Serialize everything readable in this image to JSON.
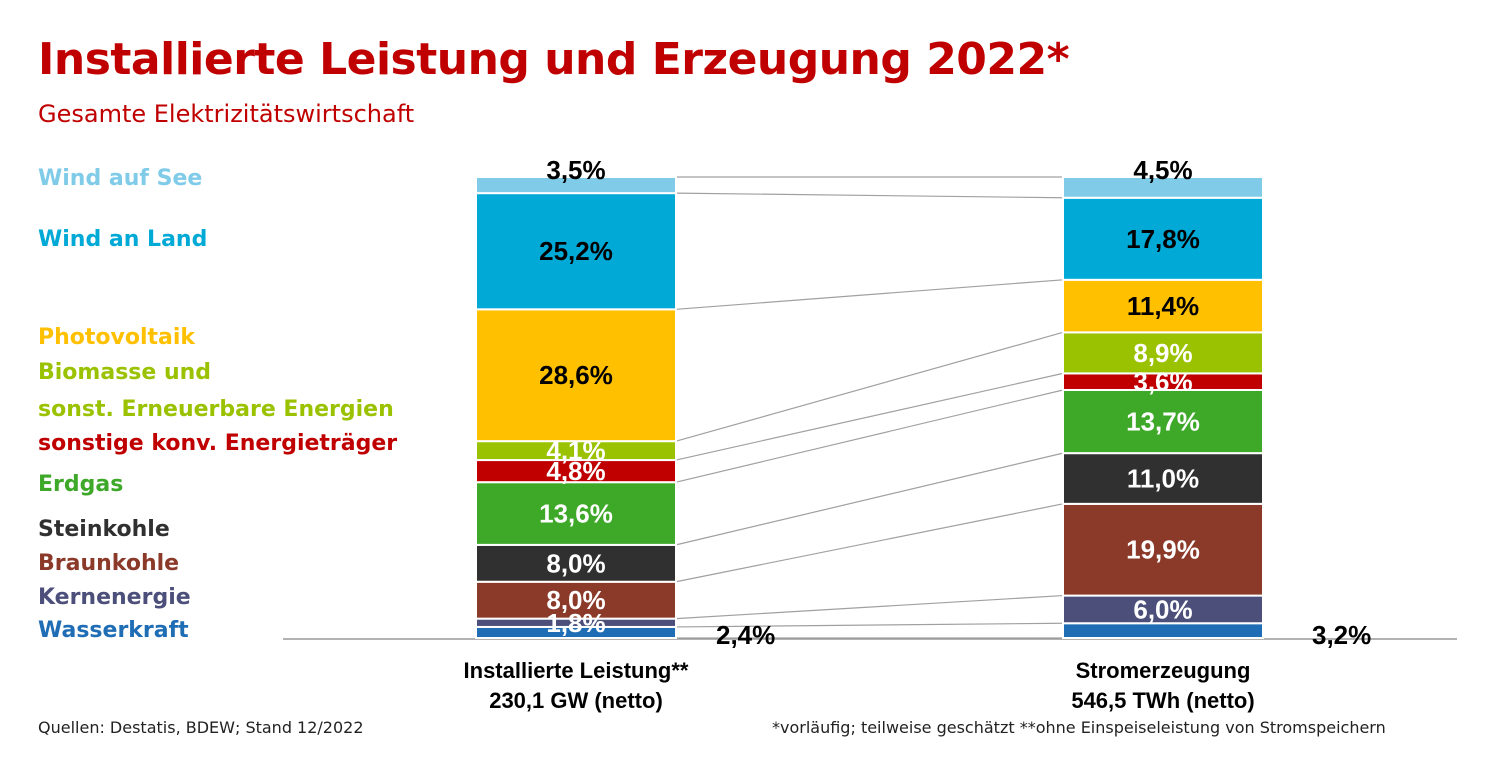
{
  "title": "Installierte Leistung und Erzeugung 2022*",
  "subtitle": "Gesamte Elektrizitätswirtschaft",
  "legend": [
    {
      "label": "Wind auf See",
      "color": "#7fcbe8"
    },
    {
      "label": "Wind an Land",
      "color": "#00a9d6"
    },
    {
      "label": "Photovoltaik",
      "color": "#ffc000"
    },
    {
      "label": "Biomasse und",
      "color": "#9ac200"
    },
    {
      "label": "sonst. Erneuerbare Energien",
      "color": "#9ac200"
    },
    {
      "label": "sonstige konv. Energieträger",
      "color": "#c00000"
    },
    {
      "label": "Erdgas",
      "color": "#3ea829"
    },
    {
      "label": "Steinkohle",
      "color": "#303030"
    },
    {
      "label": "Braunkohle",
      "color": "#8b3a2a"
    },
    {
      "label": "Kernenergie",
      "color": "#4b4f7a"
    },
    {
      "label": "Wasserkraft",
      "color": "#1f6db5"
    }
  ],
  "chart_data": {
    "type": "bar",
    "stacked": true,
    "categories": [
      "Installierte Leistung**\n230,1 GW (netto)",
      "Stromerzeugung\n546,5 TWh (netto)"
    ],
    "category_lines": [
      [
        "Installierte Leistung**",
        "230,1 GW (netto)"
      ],
      [
        "Stromerzeugung",
        "546,5 TWh (netto)"
      ]
    ],
    "series": [
      {
        "name": "Wasserkraft",
        "color": "#1f6db5",
        "values": [
          2.4,
          3.2
        ],
        "labels": [
          "2,4%",
          "3,2%"
        ],
        "label_outside": true
      },
      {
        "name": "Kernenergie",
        "color": "#4b4f7a",
        "values": [
          1.8,
          6.0
        ],
        "labels": [
          "1,8%",
          "6,0%"
        ]
      },
      {
        "name": "Braunkohle",
        "color": "#8b3a2a",
        "values": [
          8.0,
          19.9
        ],
        "labels": [
          "8,0%",
          "19,9%"
        ]
      },
      {
        "name": "Steinkohle",
        "color": "#303030",
        "values": [
          8.0,
          11.0
        ],
        "labels": [
          "8,0%",
          "11,0%"
        ]
      },
      {
        "name": "Erdgas",
        "color": "#3ea829",
        "values": [
          13.6,
          13.7
        ],
        "labels": [
          "13,6%",
          "13,7%"
        ]
      },
      {
        "name": "sonstige konv. Energieträger",
        "color": "#c00000",
        "values": [
          4.8,
          3.6
        ],
        "labels": [
          "4,8%",
          "3,6%"
        ]
      },
      {
        "name": "Biomasse und sonst. Erneuerbare Energien",
        "color": "#9ac200",
        "values": [
          4.1,
          8.9
        ],
        "labels": [
          "4,1%",
          "8,9%"
        ]
      },
      {
        "name": "Photovoltaik",
        "color": "#ffc000",
        "values": [
          28.6,
          11.4
        ],
        "labels": [
          "28,6%",
          "11,4%"
        ]
      },
      {
        "name": "Wind an Land",
        "color": "#00a9d6",
        "values": [
          25.2,
          17.8
        ],
        "labels": [
          "25,2%",
          "17,8%"
        ]
      },
      {
        "name": "Wind auf See",
        "color": "#7fcbe8",
        "values": [
          3.5,
          4.5
        ],
        "labels": [
          "3,5%",
          "4,5%"
        ]
      }
    ],
    "ylim": [
      0,
      100
    ]
  },
  "footer": {
    "sources": "Quellen: Destatis, BDEW; Stand 12/2022",
    "note": "*vorläufig; teilweise geschätzt **ohne Einspeiseleistung von Stromspeichern"
  }
}
